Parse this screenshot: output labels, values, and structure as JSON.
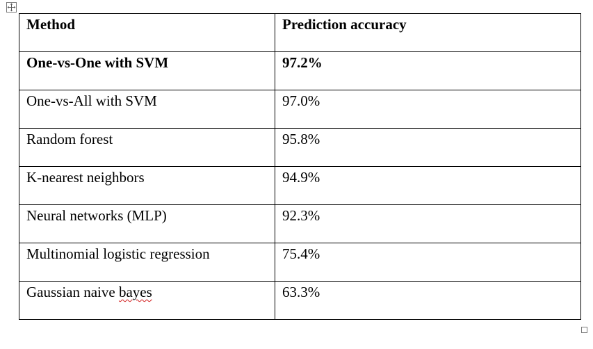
{
  "table": {
    "headers": [
      "Method",
      "Prediction accuracy"
    ],
    "rows": [
      {
        "method": "One-vs-One with SVM",
        "accuracy": "97.2%",
        "bold": true
      },
      {
        "method": "One-vs-All with SVM",
        "accuracy": "97.0%"
      },
      {
        "method": "Random forest",
        "accuracy": "95.8%"
      },
      {
        "method": "K-nearest neighbors",
        "accuracy": "94.9%"
      },
      {
        "method": "Neural networks (MLP)",
        "accuracy": "92.3%"
      },
      {
        "method": "Multinomial logistic regression",
        "accuracy": "75.4%"
      },
      {
        "method_prefix": "Gaussian naive ",
        "method_flagged": "bayes",
        "accuracy": "63.3%"
      }
    ]
  },
  "icons": {
    "move_handle": "move-arrows-icon",
    "resize_handle": "resize-square-icon"
  },
  "colors": {
    "border": "#000000",
    "spellcheck_underline": "#d21c1c"
  }
}
